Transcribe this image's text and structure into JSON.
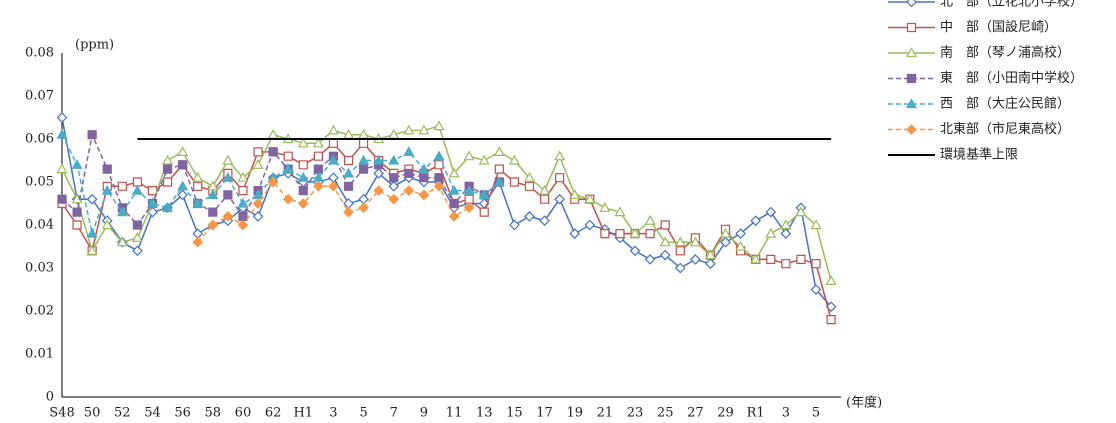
{
  "chart_data": {
    "type": "line",
    "y_label": "(ppm)",
    "x_label": "(年度)",
    "categories": [
      "S48",
      null,
      "50",
      null,
      "52",
      null,
      "54",
      null,
      "56",
      null,
      "58",
      null,
      "60",
      null,
      "62",
      null,
      "H1",
      null,
      "3",
      null,
      "5",
      null,
      "7",
      null,
      "9",
      null,
      "11",
      null,
      "13",
      null,
      "15",
      null,
      "17",
      null,
      "19",
      null,
      "21",
      null,
      "23",
      null,
      "25",
      null,
      "27",
      null,
      "29",
      null,
      "R1",
      null,
      "3",
      null,
      "5",
      null
    ],
    "ylim": [
      0,
      0.08
    ],
    "yticks": [
      0,
      0.01,
      0.02,
      0.03,
      0.04,
      0.05,
      0.06,
      0.07,
      0.08
    ],
    "grid": false,
    "legend": "top-right",
    "series": [
      {
        "name": "北　部（立花北小学校）",
        "color": "#4472c4",
        "marker": "diamond-open",
        "dash": "solid",
        "values": [
          0.065,
          0.046,
          0.046,
          0.041,
          0.036,
          0.034,
          0.043,
          0.044,
          0.047,
          0.038,
          0.04,
          0.041,
          0.044,
          0.042,
          0.051,
          0.052,
          0.05,
          0.05,
          0.051,
          0.045,
          0.046,
          0.052,
          0.049,
          0.051,
          0.05,
          0.05,
          0.044,
          0.045,
          0.045,
          0.05,
          0.04,
          0.042,
          0.041,
          0.046,
          0.038,
          0.04,
          0.039,
          0.037,
          0.034,
          0.032,
          0.033,
          0.03,
          0.032,
          0.031,
          0.036,
          0.038,
          0.041,
          0.043,
          0.038,
          0.044,
          0.025,
          0.021
        ]
      },
      {
        "name": "中　部（国設尼崎）",
        "color": "#c0504d",
        "marker": "square-open",
        "dash": "solid",
        "values": [
          0.045,
          0.04,
          0.034,
          0.049,
          0.049,
          0.05,
          0.048,
          0.05,
          0.054,
          0.049,
          0.048,
          0.052,
          0.048,
          0.057,
          0.057,
          0.056,
          0.054,
          0.056,
          0.059,
          0.055,
          0.059,
          0.055,
          0.052,
          0.053,
          0.052,
          0.054,
          0.045,
          0.046,
          0.043,
          0.053,
          0.05,
          0.049,
          0.046,
          0.051,
          0.046,
          0.046,
          0.038,
          0.038,
          0.038,
          0.038,
          0.04,
          0.034,
          0.037,
          0.033,
          0.039,
          0.034,
          0.032,
          0.032,
          0.031,
          0.032,
          0.031,
          0.018
        ]
      },
      {
        "name": "南　部（琴ノ浦高校）",
        "color": "#9bbb59",
        "marker": "triangle-open",
        "dash": "solid",
        "values": [
          0.053,
          0.046,
          0.034,
          0.04,
          0.036,
          0.037,
          0.045,
          0.055,
          0.057,
          0.051,
          0.049,
          0.055,
          0.051,
          0.054,
          0.061,
          0.06,
          0.059,
          0.059,
          0.062,
          0.061,
          0.061,
          0.06,
          0.061,
          0.062,
          0.062,
          0.063,
          0.052,
          0.056,
          0.055,
          0.057,
          0.055,
          0.051,
          0.048,
          0.056,
          0.047,
          0.046,
          0.044,
          0.043,
          0.038,
          0.041,
          0.036,
          0.036,
          0.036,
          0.033,
          0.038,
          0.035,
          0.032,
          0.038,
          0.04,
          0.043,
          0.04,
          0.027
        ]
      },
      {
        "name": "東　部（小田南中学校）",
        "color": "#8064a2",
        "marker": "square",
        "dash": "dashed",
        "values": [
          0.046,
          0.043,
          0.061,
          0.053,
          0.044,
          0.04,
          0.045,
          0.053,
          0.054,
          0.045,
          0.043,
          0.047,
          0.042,
          0.048,
          0.057,
          0.053,
          0.048,
          0.053,
          0.056,
          0.049,
          0.053,
          0.054,
          0.051,
          0.052,
          0.051,
          0.051,
          0.045,
          0.049,
          0.047,
          0.05,
          null,
          null,
          null,
          null,
          null,
          null,
          null,
          null,
          null,
          null,
          null,
          null,
          null,
          null,
          null,
          null,
          null,
          null,
          null,
          null,
          null,
          null
        ]
      },
      {
        "name": "西　部（大庄公民館）",
        "color": "#4bacc6",
        "marker": "triangle",
        "dash": "dashed",
        "values": [
          0.061,
          0.054,
          0.038,
          0.048,
          0.043,
          0.048,
          0.045,
          0.044,
          0.049,
          0.045,
          0.047,
          0.051,
          0.045,
          0.047,
          0.051,
          0.053,
          0.051,
          0.051,
          0.055,
          0.052,
          0.055,
          0.055,
          0.055,
          0.057,
          0.053,
          0.056,
          0.048,
          0.048,
          0.047,
          0.05,
          null,
          null,
          null,
          null,
          null,
          null,
          null,
          null,
          null,
          null,
          null,
          null,
          null,
          null,
          null,
          null,
          null,
          null,
          null,
          null,
          null,
          null
        ]
      },
      {
        "name": "北東部（市尼東高校）",
        "color": "#f79646",
        "marker": "diamond",
        "dash": "dashed",
        "values": [
          null,
          null,
          null,
          null,
          null,
          null,
          null,
          null,
          null,
          0.036,
          0.04,
          0.042,
          0.04,
          0.045,
          0.05,
          0.046,
          0.045,
          0.049,
          0.049,
          0.043,
          0.044,
          0.048,
          0.046,
          0.048,
          0.047,
          0.049,
          0.042,
          0.044,
          null,
          null,
          null,
          null,
          null,
          null,
          null,
          null,
          null,
          null,
          null,
          null,
          null,
          null,
          null,
          null,
          null,
          null,
          null,
          null,
          null,
          null,
          null,
          null
        ]
      },
      {
        "name": "環境基準上限",
        "color": "#000000",
        "marker": "none",
        "dash": "solid",
        "values": [
          null,
          null,
          null,
          null,
          null,
          0.06,
          0.06,
          0.06,
          0.06,
          0.06,
          0.06,
          0.06,
          0.06,
          0.06,
          0.06,
          0.06,
          0.06,
          0.06,
          0.06,
          0.06,
          0.06,
          0.06,
          0.06,
          0.06,
          0.06,
          0.06,
          0.06,
          0.06,
          0.06,
          0.06,
          0.06,
          0.06,
          0.06,
          0.06,
          0.06,
          0.06,
          0.06,
          0.06,
          0.06,
          0.06,
          0.06,
          0.06,
          0.06,
          0.06,
          0.06,
          0.06,
          0.06,
          0.06,
          0.06,
          0.06,
          0.06,
          0.06
        ]
      }
    ]
  }
}
